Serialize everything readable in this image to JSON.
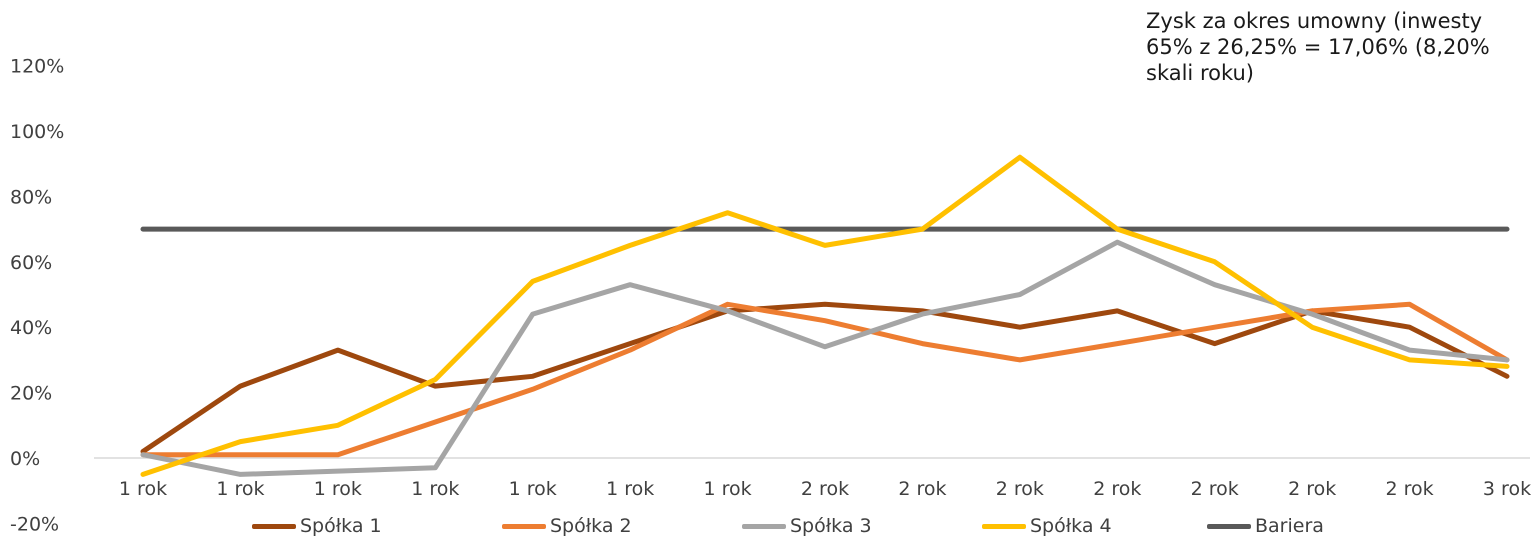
{
  "chart_data": {
    "type": "line",
    "categories": [
      "1 rok",
      "1 rok",
      "1 rok",
      "1 rok",
      "1 rok",
      "1 rok",
      "1 rok",
      "2 rok",
      "2 rok",
      "2 rok",
      "2 rok",
      "2 rok",
      "2 rok",
      "2 rok",
      "3 rok"
    ],
    "yticks": [
      "-20%",
      "0%",
      "20%",
      "40%",
      "60%",
      "80%",
      "100%",
      "120%"
    ],
    "ylim": [
      -20,
      120
    ],
    "annotation": "Zysk za okres umowny (inwesty\n65% z 26,25% = 17,06% (8,20%\nskali roku)",
    "legend_position": "bottom",
    "series": [
      {
        "name": "Spółka 1",
        "color": "#9E480E",
        "values": [
          2,
          22,
          33,
          22,
          25,
          35,
          45,
          47,
          45,
          40,
          45,
          35,
          45,
          40,
          25
        ]
      },
      {
        "name": "Spółka 2",
        "color": "#ED7D31",
        "values": [
          1,
          1,
          1,
          11,
          21,
          33,
          47,
          42,
          35,
          30,
          35,
          40,
          45,
          47,
          30
        ]
      },
      {
        "name": "Spółka 3",
        "color": "#A5A5A5",
        "values": [
          1,
          -5,
          -4,
          -3,
          44,
          53,
          45,
          34,
          44,
          50,
          66,
          53,
          44,
          33,
          30
        ]
      },
      {
        "name": "Spółka 4",
        "color": "#FFC000",
        "values": [
          -5,
          5,
          10,
          24,
          54,
          65,
          75,
          65,
          70,
          92,
          70,
          60,
          40,
          30,
          28
        ]
      },
      {
        "name": "Bariera",
        "color": "#595959",
        "values": [
          70,
          70,
          70,
          70,
          70,
          70,
          70,
          70,
          70,
          70,
          70,
          70,
          70,
          70,
          70
        ]
      }
    ]
  }
}
